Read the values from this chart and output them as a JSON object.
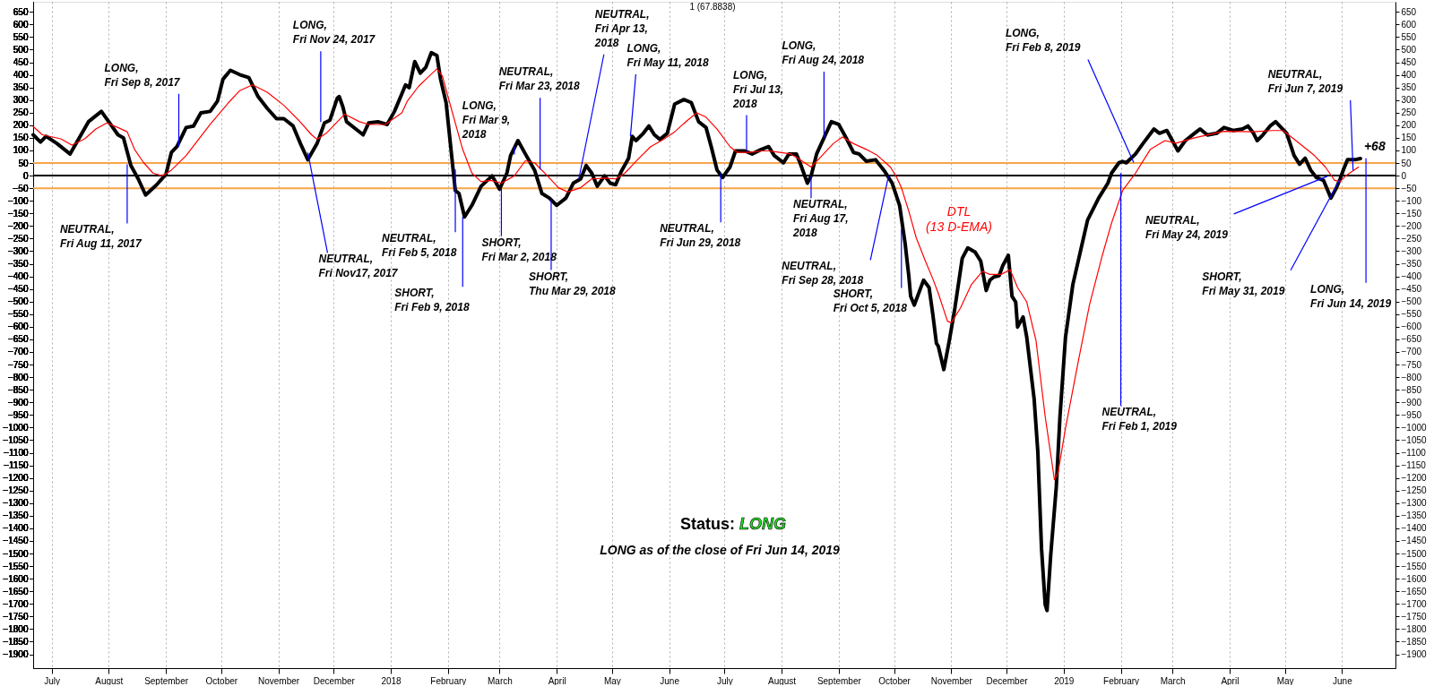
{
  "chart_data": {
    "type": "line",
    "title": "1 (67.8838)",
    "xlim": [
      "2017-06-21",
      "2019-06-30"
    ],
    "ylim": [
      -1955,
      690
    ],
    "y2lim": [
      -1955,
      690
    ],
    "grid": "x",
    "xticks": [
      {
        "value": "2017-07-01",
        "label": "July"
      },
      {
        "value": "2017-08-01",
        "label": "August"
      },
      {
        "value": "2017-09-01",
        "label": "September"
      },
      {
        "value": "2017-10-01",
        "label": "October"
      },
      {
        "value": "2017-11-01",
        "label": "November"
      },
      {
        "value": "2017-12-01",
        "label": "December"
      },
      {
        "value": "2018-01-01",
        "label": "2018"
      },
      {
        "value": "2018-02-01",
        "label": "February"
      },
      {
        "value": "2018-03-01",
        "label": "March"
      },
      {
        "value": "2018-04-01",
        "label": "April"
      },
      {
        "value": "2018-05-01",
        "label": "May"
      },
      {
        "value": "2018-06-01",
        "label": "June"
      },
      {
        "value": "2018-07-01",
        "label": "July"
      },
      {
        "value": "2018-08-01",
        "label": "August"
      },
      {
        "value": "2018-09-01",
        "label": "September"
      },
      {
        "value": "2018-10-01",
        "label": "October"
      },
      {
        "value": "2018-11-01",
        "label": "November"
      },
      {
        "value": "2018-12-01",
        "label": "December"
      },
      {
        "value": "2019-01-01",
        "label": "2019"
      },
      {
        "value": "2019-02-01",
        "label": "February"
      },
      {
        "value": "2019-03-01",
        "label": "March"
      },
      {
        "value": "2019-04-01",
        "label": "April"
      },
      {
        "value": "2019-05-01",
        "label": "May"
      },
      {
        "value": "2019-06-01",
        "label": "June"
      }
    ],
    "yticks": [
      -1900,
      -1850,
      -1800,
      -1750,
      -1700,
      -1650,
      -1600,
      -1550,
      -1500,
      -1450,
      -1400,
      -1350,
      -1300,
      -1250,
      -1200,
      -1150,
      -1100,
      -1050,
      -1000,
      -950,
      -900,
      -850,
      -800,
      -750,
      -700,
      -650,
      -600,
      -550,
      -500,
      -450,
      -400,
      -350,
      -300,
      -250,
      -200,
      -150,
      -100,
      -50,
      0,
      50,
      100,
      150,
      200,
      250,
      300,
      350,
      400,
      450,
      500,
      550,
      600,
      650
    ],
    "y2ticks": [
      -1900,
      -1850,
      -1800,
      -1750,
      -1700,
      -1650,
      -1600,
      -1550,
      -1500,
      -1450,
      -1400,
      -1350,
      -1300,
      -1250,
      -1200,
      -1150,
      -1100,
      -1050,
      -1000,
      -950,
      -900,
      -850,
      -800,
      -750,
      -700,
      -650,
      -600,
      -550,
      -500,
      -450,
      -400,
      -350,
      -300,
      -250,
      -200,
      -150,
      -100,
      -50,
      0,
      50,
      100,
      150,
      200,
      250,
      300,
      350,
      400,
      450,
      500,
      550,
      600,
      650
    ],
    "ref_lines": [
      {
        "axis": "y",
        "value": 50,
        "color": "#f7a54a"
      },
      {
        "axis": "y",
        "value": -50,
        "color": "#f7a54a"
      },
      {
        "axis": "y",
        "value": 0,
        "color": "#000000"
      }
    ],
    "series": [
      {
        "color": "#000000",
        "x": [
          "2017-06-21",
          "2017-06-25",
          "2017-06-28",
          "2017-07-04",
          "2017-07-11",
          "2017-07-16",
          "2017-07-21",
          "2017-07-28",
          "2017-08-01",
          "2017-08-06",
          "2017-08-09",
          "2017-08-13",
          "2017-08-17",
          "2017-08-21",
          "2017-08-27",
          "2017-09-01",
          "2017-09-04",
          "2017-09-07",
          "2017-09-12",
          "2017-09-16",
          "2017-09-20",
          "2017-09-25",
          "2017-09-29",
          "2017-10-02",
          "2017-10-06",
          "2017-10-11",
          "2017-10-16",
          "2017-10-21",
          "2017-10-26",
          "2017-10-31",
          "2017-11-04",
          "2017-11-09",
          "2017-11-13",
          "2017-11-17",
          "2017-11-22",
          "2017-11-26",
          "2017-11-29",
          "2017-12-03",
          "2017-12-04",
          "2017-12-06",
          "2017-12-08",
          "2017-12-13",
          "2017-12-17",
          "2017-12-20",
          "2017-12-25",
          "2017-12-30",
          "2018-01-03",
          "2018-01-07",
          "2018-01-09",
          "2018-01-11",
          "2018-01-14",
          "2018-01-17",
          "2018-01-20",
          "2018-01-23",
          "2018-01-26",
          "2018-01-28",
          "2018-01-31",
          "2018-02-02",
          "2018-02-05",
          "2018-02-07",
          "2018-02-10",
          "2018-02-14",
          "2018-02-19",
          "2018-02-25",
          "2018-03-01",
          "2018-03-05",
          "2018-03-07",
          "2018-03-11",
          "2018-03-15",
          "2018-03-20",
          "2018-03-24",
          "2018-03-28",
          "2018-04-01",
          "2018-04-06",
          "2018-04-10",
          "2018-04-14",
          "2018-04-17",
          "2018-04-20",
          "2018-04-23",
          "2018-04-27",
          "2018-04-30",
          "2018-05-03",
          "2018-05-06",
          "2018-05-10",
          "2018-05-12",
          "2018-05-14",
          "2018-05-18",
          "2018-05-21",
          "2018-05-24",
          "2018-05-27",
          "2018-05-31",
          "2018-06-04",
          "2018-06-09",
          "2018-06-13",
          "2018-06-17",
          "2018-06-21",
          "2018-06-24",
          "2018-06-27",
          "2018-06-30",
          "2018-07-04",
          "2018-07-07",
          "2018-07-12",
          "2018-07-16",
          "2018-07-21",
          "2018-07-25",
          "2018-07-28",
          "2018-08-02",
          "2018-08-05",
          "2018-08-09",
          "2018-08-11",
          "2018-08-15",
          "2018-08-17",
          "2018-08-20",
          "2018-08-24",
          "2018-08-28",
          "2018-09-01",
          "2018-09-05",
          "2018-09-09",
          "2018-09-12",
          "2018-09-16",
          "2018-09-21",
          "2018-09-26",
          "2018-09-30",
          "2018-10-04",
          "2018-10-07",
          "2018-10-09",
          "2018-10-10",
          "2018-10-12",
          "2018-10-17",
          "2018-10-20",
          "2018-10-22",
          "2018-10-24",
          "2018-10-25",
          "2018-10-28",
          "2018-10-31",
          "2018-11-03",
          "2018-11-07",
          "2018-11-10",
          "2018-11-14",
          "2018-11-17",
          "2018-11-20",
          "2018-11-22",
          "2018-11-24",
          "2018-11-27",
          "2018-11-29",
          "2018-12-02",
          "2018-12-04",
          "2018-12-06",
          "2018-12-07",
          "2018-12-10",
          "2018-12-12",
          "2018-12-16",
          "2018-12-18",
          "2018-12-20",
          "2018-12-22",
          "2018-12-23",
          "2018-12-25",
          "2018-12-28",
          "2018-12-30",
          "2019-01-02",
          "2019-01-06",
          "2019-01-10",
          "2019-01-14",
          "2019-01-20",
          "2019-01-25",
          "2019-01-27",
          "2019-01-31",
          "2019-02-02",
          "2019-02-04",
          "2019-02-09",
          "2019-02-13",
          "2019-02-19",
          "2019-02-22",
          "2019-02-26",
          "2019-03-01",
          "2019-03-04",
          "2019-03-08",
          "2019-03-13",
          "2019-03-16",
          "2019-03-20",
          "2019-03-25",
          "2019-03-29",
          "2019-04-03",
          "2019-04-08",
          "2019-04-11",
          "2019-04-14",
          "2019-04-16",
          "2019-04-19",
          "2019-04-23",
          "2019-04-26",
          "2019-04-29",
          "2019-05-02",
          "2019-05-06",
          "2019-05-09",
          "2019-05-12",
          "2019-05-15",
          "2019-05-18",
          "2019-05-22",
          "2019-05-26",
          "2019-05-29",
          "2019-05-31",
          "2019-06-02",
          "2019-06-04",
          "2019-06-08",
          "2019-06-11"
        ],
        "values": [
          162,
          133,
          156,
          127,
          86,
          150,
          214,
          255,
          214,
          162,
          150,
          40,
          -13,
          -77,
          -36,
          5,
          92,
          115,
          191,
          197,
          249,
          255,
          296,
          383,
          418,
          401,
          389,
          314,
          267,
          226,
          226,
          197,
          127,
          63,
          127,
          209,
          220,
          308,
          314,
          273,
          214,
          185,
          162,
          209,
          214,
          203,
          255,
          325,
          360,
          349,
          453,
          407,
          430,
          488,
          477,
          383,
          290,
          150,
          -59,
          -71,
          -164,
          -118,
          -42,
          -1,
          -54,
          10,
          80,
          139,
          86,
          22,
          -71,
          -89,
          -118,
          -89,
          -30,
          -13,
          40,
          10,
          -42,
          -1,
          -30,
          -36,
          16,
          69,
          156,
          139,
          168,
          197,
          162,
          144,
          168,
          284,
          302,
          290,
          214,
          191,
          110,
          22,
          -7,
          34,
          98,
          98,
          86,
          104,
          115,
          80,
          51,
          86,
          86,
          51,
          -30,
          -1,
          86,
          150,
          214,
          203,
          150,
          92,
          86,
          57,
          63,
          16,
          -30,
          -118,
          -269,
          -398,
          -479,
          -514,
          -415,
          -444,
          -549,
          -666,
          -677,
          -770,
          -654,
          -526,
          -328,
          -287,
          -304,
          -339,
          -456,
          -415,
          -403,
          -397,
          -357,
          -316,
          -479,
          -502,
          -601,
          -561,
          -642,
          -887,
          -1097,
          -1481,
          -1703,
          -1726,
          -1505,
          -1237,
          -957,
          -642,
          -432,
          -304,
          -176,
          -89,
          -30,
          10,
          51,
          56,
          51,
          86,
          127,
          185,
          168,
          179,
          139,
          98,
          139,
          168,
          185,
          161,
          168,
          191,
          179,
          185,
          197,
          168,
          139,
          161,
          197,
          214,
          191,
          168,
          80,
          45,
          69,
          22,
          -7,
          -19,
          -89,
          -48,
          -13,
          28,
          63,
          63,
          68
        ],
        "value_labels": [
          null,
          null,
          null,
          null,
          null,
          null,
          null,
          null,
          null,
          null,
          null,
          null,
          null,
          null,
          null,
          null,
          null,
          null,
          null,
          null,
          null,
          null,
          null,
          null,
          null,
          null,
          null,
          null,
          null,
          null,
          null,
          null,
          null,
          null,
          null,
          null,
          null,
          null,
          null,
          null,
          null,
          null,
          null,
          null,
          null,
          null,
          null,
          null,
          null,
          null,
          null,
          null,
          null,
          null,
          null,
          null,
          null,
          null,
          null,
          null,
          null,
          null,
          null,
          null,
          null,
          null,
          null,
          null,
          null,
          null,
          null,
          null,
          null,
          null,
          null,
          null,
          null,
          null,
          null,
          null,
          null,
          null,
          null,
          null,
          null,
          null,
          null,
          null,
          null,
          null,
          null,
          null,
          null,
          null,
          null,
          null,
          null,
          null,
          null,
          null,
          null,
          null,
          null,
          null,
          null,
          null,
          null,
          null,
          null,
          null,
          null,
          null,
          null,
          null,
          null,
          null,
          null,
          null,
          null,
          null,
          null,
          null,
          null,
          null,
          null,
          null,
          null,
          null,
          null,
          null,
          null,
          null,
          null,
          null,
          null,
          null,
          null,
          null,
          null,
          null,
          null,
          null,
          null,
          null,
          null,
          null,
          null,
          null,
          null,
          null,
          null,
          null,
          null,
          null,
          null,
          null,
          null,
          null,
          null,
          null,
          null,
          null,
          null,
          null,
          null,
          null,
          null,
          null,
          null,
          null,
          null,
          null,
          null,
          null,
          null,
          null,
          null,
          null,
          null,
          null,
          null,
          null,
          null,
          null,
          null,
          null,
          null,
          null,
          null,
          null,
          null,
          null,
          null,
          null,
          null,
          null,
          null,
          null,
          null,
          null,
          null,
          null,
          null,
          null,
          "+68"
        ]
      },
      {
        "name": "DTL (13 D-EMA)",
        "color": "#ff0000",
        "x": [
          "2017-06-21",
          "2017-06-26",
          "2017-07-06",
          "2017-07-12",
          "2017-07-19",
          "2017-07-25",
          "2017-07-31",
          "2017-08-06",
          "2017-08-11",
          "2017-08-15",
          "2017-08-20",
          "2017-08-25",
          "2017-08-30",
          "2017-09-04",
          "2017-09-12",
          "2017-09-25",
          "2017-10-05",
          "2017-10-11",
          "2017-10-18",
          "2017-10-26",
          "2017-11-04",
          "2017-11-12",
          "2017-11-19",
          "2017-11-22",
          "2017-11-27",
          "2017-12-07",
          "2017-12-15",
          "2017-12-20",
          "2017-12-29",
          "2018-01-07",
          "2018-01-10",
          "2018-01-16",
          "2018-01-21",
          "2018-01-26",
          "2018-01-29",
          "2018-02-01",
          "2018-02-05",
          "2018-02-09",
          "2018-02-14",
          "2018-02-19",
          "2018-02-24",
          "2018-03-02",
          "2018-03-09",
          "2018-03-15",
          "2018-03-20",
          "2018-03-27",
          "2018-04-02",
          "2018-04-07",
          "2018-04-14",
          "2018-04-20",
          "2018-04-27",
          "2018-05-03",
          "2018-05-08",
          "2018-05-14",
          "2018-05-22",
          "2018-05-29",
          "2018-06-04",
          "2018-06-11",
          "2018-06-16",
          "2018-06-21",
          "2018-06-27",
          "2018-07-04",
          "2018-07-08",
          "2018-07-15",
          "2018-07-21",
          "2018-07-25",
          "2018-07-31",
          "2018-08-06",
          "2018-08-11",
          "2018-08-17",
          "2018-08-23",
          "2018-08-29",
          "2018-09-03",
          "2018-09-09",
          "2018-09-16",
          "2018-09-22",
          "2018-09-29",
          "2018-10-02",
          "2018-10-05",
          "2018-10-09",
          "2018-10-13",
          "2018-10-18",
          "2018-10-22",
          "2018-10-25",
          "2018-10-30",
          "2018-11-01",
          "2018-11-06",
          "2018-11-12",
          "2018-11-18",
          "2018-11-22",
          "2018-11-28",
          "2018-12-03",
          "2018-12-07",
          "2018-12-12",
          "2018-12-17",
          "2018-12-22",
          "2018-12-27",
          "2018-12-29",
          "2019-01-02",
          "2019-01-09",
          "2019-01-15",
          "2019-01-22",
          "2019-01-27",
          "2019-02-02",
          "2019-02-09",
          "2019-02-17",
          "2019-02-25",
          "2019-03-03",
          "2019-03-13",
          "2019-03-29",
          "2019-04-14",
          "2019-04-24",
          "2019-04-30",
          "2019-05-07",
          "2019-05-17",
          "2019-05-23",
          "2019-05-28",
          "2019-05-31",
          "2019-06-03",
          "2019-06-10"
        ],
        "values": [
          195,
          162,
          146,
          121,
          146,
          185,
          209,
          191,
          174,
          104,
          51,
          10,
          -1,
          22,
          80,
          203,
          290,
          337,
          360,
          331,
          279,
          220,
          162,
          144,
          168,
          244,
          214,
          203,
          203,
          249,
          296,
          354,
          389,
          424,
          395,
          314,
          209,
          104,
          10,
          -24,
          -19,
          -30,
          -1,
          59,
          51,
          -1,
          -48,
          -65,
          -48,
          -13,
          -10,
          -13,
          10,
          57,
          115,
          144,
          174,
          220,
          249,
          232,
          185,
          115,
          92,
          92,
          98,
          98,
          92,
          86,
          63,
          34,
          80,
          127,
          153,
          127,
          104,
          80,
          34,
          -1,
          -48,
          -141,
          -246,
          -339,
          -409,
          -467,
          -578,
          -584,
          -526,
          -432,
          -380,
          -392,
          -392,
          -374,
          -444,
          -502,
          -654,
          -957,
          -1207,
          -1178,
          -1003,
          -735,
          -514,
          -316,
          -188,
          -59,
          10,
          104,
          139,
          129,
          150,
          176,
          174,
          179,
          179,
          139,
          80,
          34,
          -19,
          -24,
          -1,
          34
        ]
      }
    ],
    "annotations": [
      {
        "text": "NEUTRAL,\nFri Aug 11, 2017",
        "x": "2017-08-11",
        "y": 45
      },
      {
        "text": "LONG,\nFri Sep 8, 2017",
        "x": "2017-09-08",
        "y": 115
      },
      {
        "text": "LONG,\nFri Nov 24, 2017",
        "x": "2017-11-24",
        "y": 213
      },
      {
        "text": "NEUTRAL,\nFri Nov17, 2017",
        "x": "2017-11-17",
        "y": 91
      },
      {
        "text": "NEUTRAL,\nFri Feb 5, 2018",
        "x": "2018-02-05",
        "y": 24
      },
      {
        "text": "SHORT,\nFri Feb 9, 2018",
        "x": "2018-02-09",
        "y": -164
      },
      {
        "text": "LONG,\nFri Mar 9,\n2018",
        "x": "2018-03-09",
        "y": 84
      },
      {
        "text": "SHORT,\nFri Mar 2, 2018",
        "x": "2018-03-02",
        "y": -52
      },
      {
        "text": "NEUTRAL,\nFri Mar 23, 2018",
        "x": "2018-03-23",
        "y": 24
      },
      {
        "text": "SHORT,\nThu Mar 29, 2018",
        "x": "2018-03-29",
        "y": -94
      },
      {
        "text": "NEUTRAL,\nFri Apr 13,\n2018",
        "x": "2018-04-13",
        "y": -13
      },
      {
        "text": "LONG,\nFri May 11, 2018",
        "x": "2018-05-11",
        "y": 157
      },
      {
        "text": "LONG,\nFri Jul 13,\n2018",
        "x": "2018-07-13",
        "y": 98
      },
      {
        "text": "NEUTRAL,\nFri Jun 29, 2018",
        "x": "2018-06-29",
        "y": 10
      },
      {
        "text": "LONG,\nFri Aug 24, 2018",
        "x": "2018-08-24",
        "y": 150
      },
      {
        "text": "NEUTRAL,\nFri Aug 17,\n2018",
        "x": "2018-08-17",
        "y": -1
      },
      {
        "text": "NEUTRAL,\nFri Sep 28, 2018",
        "x": "2018-09-28",
        "y": -1
      },
      {
        "text": "SHORT,\nFri Oct 5, 2018",
        "x": "2018-10-05",
        "y": -211
      },
      {
        "text": "LONG,\nFri Feb 8, 2019",
        "x": "2019-02-08",
        "y": 52
      },
      {
        "text": "NEUTRAL,\nFri Feb 1, 2019",
        "x": "2019-02-01",
        "y": 10
      },
      {
        "text": "NEUTRAL,\nFri Jun 7, 2019",
        "x": "2019-06-07",
        "y": 22
      },
      {
        "text": "NEUTRAL,\nFri May 24, 2019",
        "x": "2019-05-24",
        "y": -3
      },
      {
        "text": "SHORT,\nFri May 31, 2019",
        "x": "2019-05-31",
        "y": -13
      },
      {
        "text": "LONG,\nFri Jun 14, 2019",
        "x": "2019-06-14",
        "y": 69
      },
      "Status:",
      "LONG",
      "LONG as of the close of Fri Jun 14, 2019"
    ]
  }
}
